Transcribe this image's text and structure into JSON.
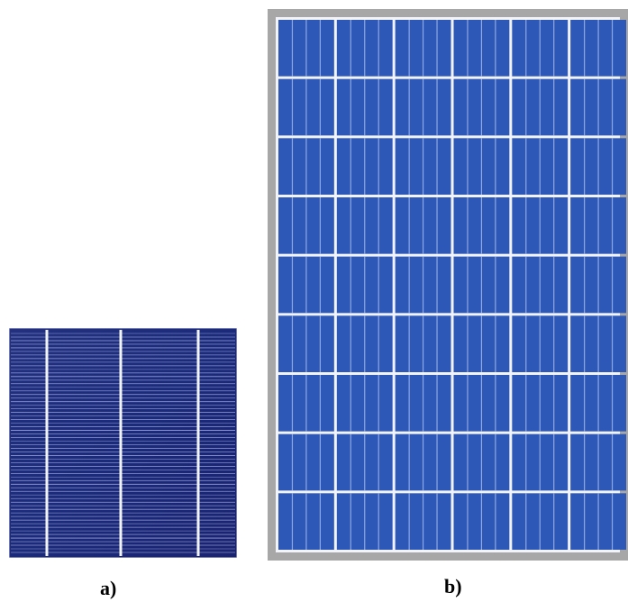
{
  "figure": {
    "panel_a": {
      "caption": "a)",
      "picture": "single-solar-cell",
      "busbar_count": 3,
      "cell_color": "#1b2a7a",
      "finger_color": "#aab4e8",
      "busbar_color": "#f2f4ff"
    },
    "panel_b": {
      "caption": "b)",
      "picture": "solar-panel-module",
      "cell_rows": 9,
      "cell_columns": 6,
      "frame_color": "#a7a7a7",
      "cell_color": "#2d58b8",
      "grid_line_color": "#f2f4fa"
    }
  }
}
